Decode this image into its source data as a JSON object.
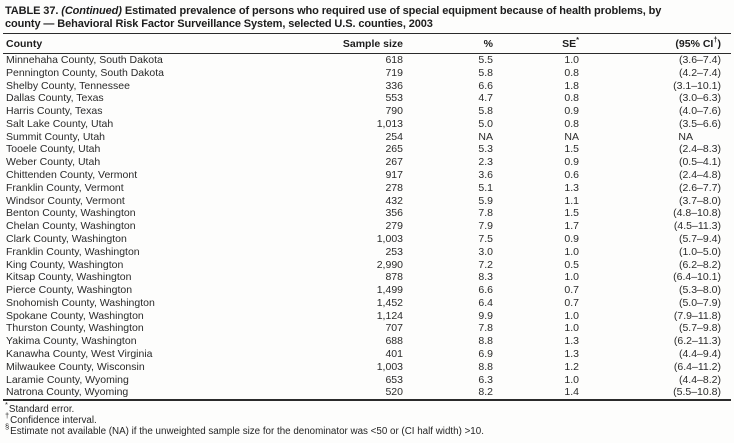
{
  "title": {
    "prefix": "TABLE 37.",
    "continued": "(Continued)",
    "rest_line1": "Estimated prevalence of persons who required use of special equipment because of health problems, by",
    "rest_line2": "county — Behavioral Risk Factor Surveillance System, selected U.S. counties, 2003"
  },
  "table": {
    "columns": [
      {
        "label": "County"
      },
      {
        "label": "Sample size"
      },
      {
        "label": "%"
      },
      {
        "label": "SE",
        "sup": "*"
      },
      {
        "label": "(95% CI",
        "sup": "†",
        "post": ")"
      }
    ],
    "rows": [
      [
        "Minnehaha County, South Dakota",
        "618",
        "5.5",
        "1.0",
        "(3.6–7.4)"
      ],
      [
        "Pennington County, South Dakota",
        "719",
        "5.8",
        "0.8",
        "(4.2–7.4)"
      ],
      [
        "Shelby County, Tennessee",
        "336",
        "6.6",
        "1.8",
        "(3.1–10.1)"
      ],
      [
        "Dallas County, Texas",
        "553",
        "4.7",
        "0.8",
        "(3.0–6.3)"
      ],
      [
        "Harris County, Texas",
        "790",
        "5.8",
        "0.9",
        "(4.0–7.6)"
      ],
      [
        "Salt Lake County, Utah",
        "1,013",
        "5.0",
        "0.8",
        "(3.5–6.6)"
      ],
      [
        "Summit County, Utah",
        "254",
        "NA",
        "NA",
        "NA"
      ],
      [
        "Tooele County, Utah",
        "265",
        "5.3",
        "1.5",
        "(2.4–8.3)"
      ],
      [
        "Weber County, Utah",
        "267",
        "2.3",
        "0.9",
        "(0.5–4.1)"
      ],
      [
        "Chittenden County, Vermont",
        "917",
        "3.6",
        "0.6",
        "(2.4–4.8)"
      ],
      [
        "Franklin County, Vermont",
        "278",
        "5.1",
        "1.3",
        "(2.6–7.7)"
      ],
      [
        "Windsor County, Vermont",
        "432",
        "5.9",
        "1.1",
        "(3.7–8.0)"
      ],
      [
        "Benton County, Washington",
        "356",
        "7.8",
        "1.5",
        "(4.8–10.8)"
      ],
      [
        "Chelan County, Washington",
        "279",
        "7.9",
        "1.7",
        "(4.5–11.3)"
      ],
      [
        "Clark County, Washington",
        "1,003",
        "7.5",
        "0.9",
        "(5.7–9.4)"
      ],
      [
        "Franklin County, Washington",
        "253",
        "3.0",
        "1.0",
        "(1.0–5.0)"
      ],
      [
        "King County, Washington",
        "2,990",
        "7.2",
        "0.5",
        "(6.2–8.2)"
      ],
      [
        "Kitsap County, Washington",
        "878",
        "8.3",
        "1.0",
        "(6.4–10.1)"
      ],
      [
        "Pierce County, Washington",
        "1,499",
        "6.6",
        "0.7",
        "(5.3–8.0)"
      ],
      [
        "Snohomish County, Washington",
        "1,452",
        "6.4",
        "0.7",
        "(5.0–7.9)"
      ],
      [
        "Spokane County, Washington",
        "1,124",
        "9.9",
        "1.0",
        "(7.9–11.8)"
      ],
      [
        "Thurston County, Washington",
        "707",
        "7.8",
        "1.0",
        "(5.7–9.8)"
      ],
      [
        "Yakima County, Washington",
        "688",
        "8.8",
        "1.3",
        "(6.2–11.3)"
      ],
      [
        "Kanawha County, West Virginia",
        "401",
        "6.9",
        "1.3",
        "(4.4–9.4)"
      ],
      [
        "Milwaukee County, Wisconsin",
        "1,003",
        "8.8",
        "1.2",
        "(6.4–11.2)"
      ],
      [
        "Laramie County, Wyoming",
        "653",
        "6.3",
        "1.0",
        "(4.4–8.2)"
      ],
      [
        "Natrona County, Wyoming",
        "520",
        "8.2",
        "1.4",
        "(5.5–10.8)"
      ]
    ]
  },
  "footnotes": [
    {
      "sup": "*",
      "text": "Standard error."
    },
    {
      "sup": "†",
      "text": "Confidence interval."
    },
    {
      "sup": "§",
      "text": "Estimate not available (NA) if the unweighted sample size for the denominator was <50 or (CI half width) >10."
    }
  ]
}
